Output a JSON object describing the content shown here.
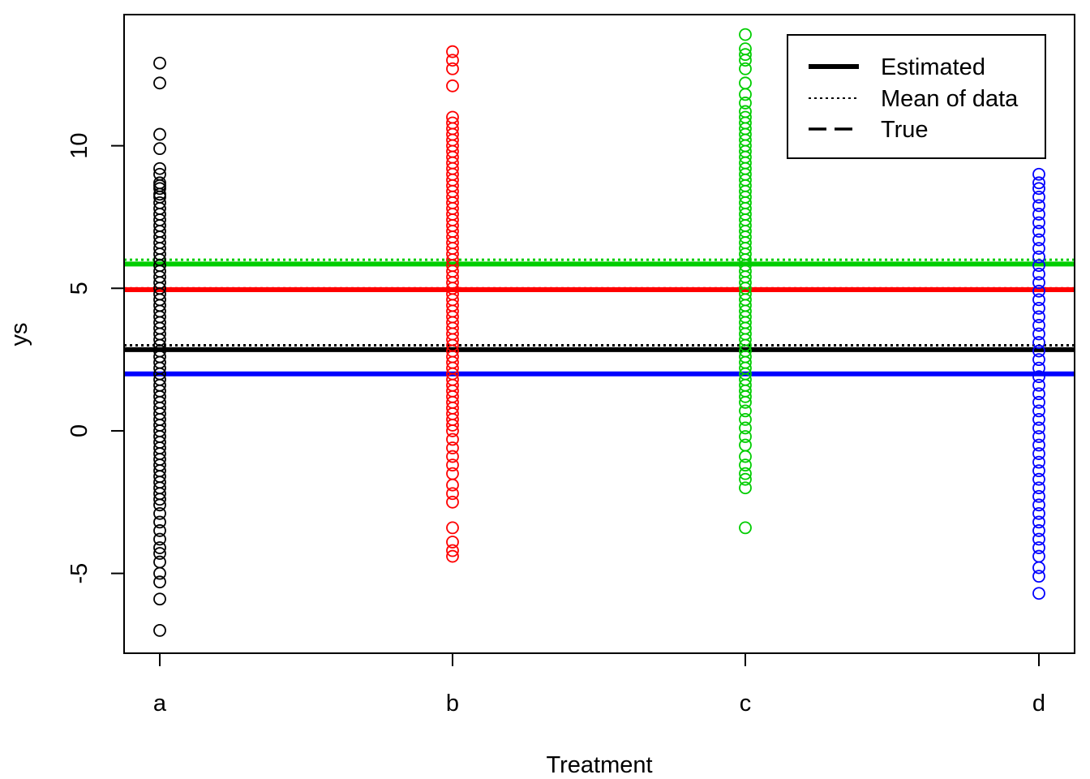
{
  "chart_data": {
    "type": "scatter",
    "title": "",
    "xlabel": "Treatment",
    "ylabel": "ys",
    "categories": [
      "a",
      "b",
      "c",
      "d"
    ],
    "ylim": [
      -7.8,
      14.6
    ],
    "yticks": [
      -5,
      0,
      5,
      10
    ],
    "ytick_labels": [
      "-5",
      "0",
      "5",
      "10"
    ],
    "colors": {
      "a": "#000000",
      "b": "#ff0000",
      "c": "#00cd00",
      "d": "#0000ff"
    },
    "series": [
      {
        "name": "a",
        "values": [
          12.9,
          12.2,
          10.4,
          9.9,
          9.2,
          9.0,
          8.7,
          8.6,
          8.5,
          8.3,
          8.2,
          8.0,
          7.8,
          7.6,
          7.4,
          7.2,
          7.0,
          6.8,
          6.6,
          6.4,
          6.2,
          6.0,
          5.8,
          5.6,
          5.4,
          5.2,
          5.0,
          4.8,
          4.6,
          4.4,
          4.2,
          4.0,
          3.8,
          3.6,
          3.4,
          3.2,
          3.0,
          2.8,
          2.6,
          2.4,
          2.2,
          2.0,
          1.8,
          1.6,
          1.4,
          1.2,
          1.0,
          0.8,
          0.6,
          0.4,
          0.2,
          0.0,
          -0.2,
          -0.4,
          -0.6,
          -0.8,
          -1.0,
          -1.2,
          -1.4,
          -1.6,
          -1.8,
          -2.0,
          -2.2,
          -2.4,
          -2.6,
          -2.9,
          -3.2,
          -3.5,
          -3.8,
          -4.1,
          -4.3,
          -4.6,
          -5.0,
          -5.3,
          -5.9,
          -7.0
        ]
      },
      {
        "name": "b",
        "values": [
          13.3,
          13.0,
          12.7,
          12.1,
          11.0,
          10.8,
          10.6,
          10.4,
          10.2,
          10.0,
          9.8,
          9.6,
          9.4,
          9.2,
          9.0,
          8.8,
          8.6,
          8.4,
          8.2,
          8.0,
          7.8,
          7.6,
          7.4,
          7.2,
          7.0,
          6.8,
          6.6,
          6.4,
          6.2,
          6.0,
          5.8,
          5.6,
          5.4,
          5.2,
          5.0,
          4.8,
          4.6,
          4.4,
          4.2,
          4.0,
          3.8,
          3.6,
          3.4,
          3.2,
          3.0,
          2.8,
          2.6,
          2.4,
          2.2,
          2.0,
          1.8,
          1.6,
          1.4,
          1.2,
          1.0,
          0.8,
          0.6,
          0.4,
          0.2,
          0.0,
          -0.3,
          -0.6,
          -0.9,
          -1.2,
          -1.5,
          -1.9,
          -2.2,
          -2.5,
          -3.4,
          -3.9,
          -4.2,
          -4.4
        ]
      },
      {
        "name": "c",
        "values": [
          13.9,
          13.4,
          13.2,
          13.0,
          12.7,
          12.2,
          11.8,
          11.5,
          11.2,
          11.0,
          10.8,
          10.6,
          10.4,
          10.2,
          10.0,
          9.8,
          9.6,
          9.4,
          9.2,
          9.0,
          8.8,
          8.6,
          8.4,
          8.2,
          8.0,
          7.8,
          7.6,
          7.4,
          7.2,
          7.0,
          6.8,
          6.6,
          6.4,
          6.2,
          6.0,
          5.8,
          5.6,
          5.4,
          5.2,
          5.0,
          4.8,
          4.6,
          4.4,
          4.2,
          4.0,
          3.8,
          3.6,
          3.4,
          3.2,
          3.0,
          2.8,
          2.6,
          2.4,
          2.2,
          2.0,
          1.8,
          1.6,
          1.4,
          1.2,
          1.0,
          0.7,
          0.4,
          0.1,
          -0.2,
          -0.5,
          -0.9,
          -1.2,
          -1.5,
          -1.7,
          -2.0,
          -3.4
        ]
      },
      {
        "name": "d",
        "values": [
          9.0,
          8.7,
          8.5,
          8.2,
          7.9,
          7.6,
          7.3,
          7.0,
          6.7,
          6.4,
          6.1,
          5.8,
          5.5,
          5.2,
          4.9,
          4.6,
          4.3,
          4.0,
          3.7,
          3.4,
          3.1,
          2.8,
          2.5,
          2.2,
          1.9,
          1.6,
          1.3,
          1.0,
          0.7,
          0.4,
          0.1,
          -0.2,
          -0.5,
          -0.8,
          -1.1,
          -1.4,
          -1.7,
          -2.0,
          -2.3,
          -2.6,
          -2.9,
          -3.2,
          -3.5,
          -3.8,
          -4.1,
          -4.4,
          -4.8,
          -5.1,
          -5.7
        ]
      }
    ],
    "hlines": [
      {
        "group": "a",
        "kind": "Estimated",
        "y": 2.85
      },
      {
        "group": "a",
        "kind": "Mean of data",
        "y": 3.0
      },
      {
        "group": "b",
        "kind": "Estimated",
        "y": 4.95
      },
      {
        "group": "b",
        "kind": "Mean of data",
        "y": 5.0
      },
      {
        "group": "c",
        "kind": "Estimated",
        "y": 5.85
      },
      {
        "group": "c",
        "kind": "Mean of data",
        "y": 6.0
      },
      {
        "group": "d",
        "kind": "Estimated",
        "y": 2.0
      },
      {
        "group": "d",
        "kind": "Mean of data",
        "y": 2.0
      }
    ],
    "legend": {
      "position": "top-right",
      "entries": [
        {
          "label": "Estimated",
          "style": "solid-thick"
        },
        {
          "label": "Mean of data",
          "style": "dotted"
        },
        {
          "label": "True",
          "style": "dashed"
        }
      ]
    }
  }
}
